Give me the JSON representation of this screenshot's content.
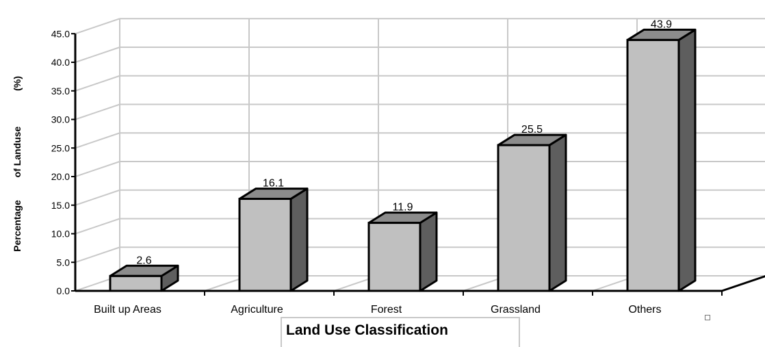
{
  "chart_data": {
    "type": "bar",
    "categories": [
      "Built up Areas",
      "Agriculture",
      "Forest",
      "Grassland",
      "Others"
    ],
    "values": [
      2.6,
      16.1,
      11.9,
      25.5,
      43.9
    ],
    "value_labels": [
      "2.6",
      "16.1",
      "11.9",
      "25.5",
      "43.9"
    ],
    "xlabel": "Land Use Classification",
    "ylabel_parts": [
      "Percentage",
      "of Landuse",
      "(%)"
    ],
    "ylim": [
      0,
      45
    ],
    "yticks": [
      "0.0",
      "5.0",
      "10.0",
      "15.0",
      "20.0",
      "25.0",
      "30.0",
      "35.0",
      "40.0",
      "45.0"
    ],
    "grid": true,
    "style": "3d",
    "colors": {
      "bar_front": "#c0c0c0",
      "bar_top": "#8c8c8c",
      "bar_side": "#5e5e5e",
      "grid": "#c8c8c8"
    }
  }
}
